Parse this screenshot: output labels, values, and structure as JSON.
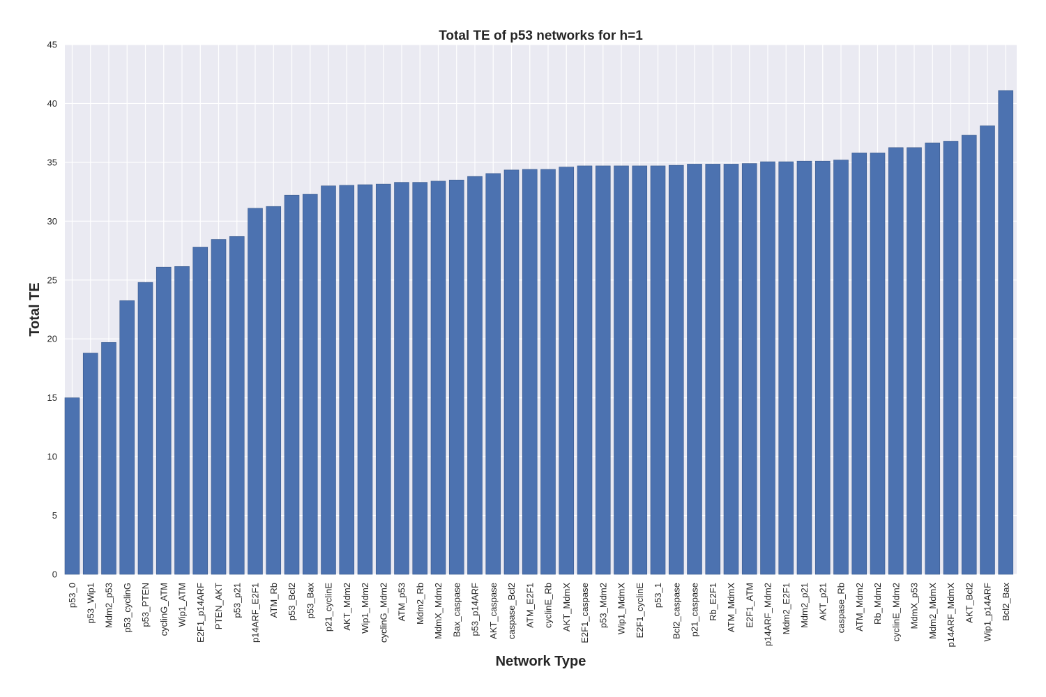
{
  "chart_data": {
    "type": "bar",
    "title": "Total TE of p53 networks for h=1",
    "xlabel": "Network Type",
    "ylabel": "Total TE",
    "ylim": [
      0,
      45
    ],
    "yticks": [
      0,
      5,
      10,
      15,
      20,
      25,
      30,
      35,
      40,
      45
    ],
    "grid": true,
    "bar_color": "#4c72b0",
    "background_color": "#eaeaf2",
    "categories": [
      "p53_0",
      "p53_Wip1",
      "Mdm2_p53",
      "p53_cyclinG",
      "p53_PTEN",
      "cyclinG_ATM",
      "Wip1_ATM",
      "E2F1_p14ARF",
      "PTEN_AKT",
      "p53_p21",
      "p14ARF_E2F1",
      "ATM_Rb",
      "p53_Bcl2",
      "p53_Bax",
      "p21_cyclinE",
      "AKT_Mdm2",
      "Wip1_Mdm2",
      "cyclinG_Mdm2",
      "ATM_p53",
      "Mdm2_Rb",
      "MdmX_Mdm2",
      "Bax_caspase",
      "p53_p14ARF",
      "AKT_caspase",
      "caspase_Bcl2",
      "ATM_E2F1",
      "cyclinE_Rb",
      "AKT_MdmX",
      "E2F1_caspase",
      "p53_Mdm2",
      "Wip1_MdmX",
      "E2F1_cyclinE",
      "p53_1",
      "Bcl2_caspase",
      "p21_caspase",
      "Rb_E2F1",
      "ATM_MdmX",
      "E2F1_ATM",
      "p14ARF_Mdm2",
      "Mdm2_E2F1",
      "Mdm2_p21",
      "AKT_p21",
      "caspase_Rb",
      "ATM_Mdm2",
      "Rb_Mdm2",
      "cyclinE_Mdm2",
      "MdmX_p53",
      "Mdm2_MdmX",
      "p14ARF_MdmX",
      "AKT_Bcl2",
      "Wip1_p14ARF",
      "Bcl2_Bax"
    ],
    "values": [
      15.0,
      18.8,
      19.7,
      23.25,
      24.8,
      26.1,
      26.15,
      27.8,
      28.45,
      28.7,
      31.1,
      31.25,
      32.2,
      32.3,
      33.0,
      33.05,
      33.1,
      33.15,
      33.3,
      33.3,
      33.4,
      33.5,
      33.8,
      34.05,
      34.35,
      34.4,
      34.4,
      34.6,
      34.7,
      34.7,
      34.7,
      34.7,
      34.7,
      34.75,
      34.85,
      34.85,
      34.85,
      34.9,
      35.05,
      35.05,
      35.1,
      35.1,
      35.2,
      35.8,
      35.8,
      36.25,
      36.25,
      36.65,
      36.8,
      37.3,
      38.1,
      41.1
    ]
  }
}
